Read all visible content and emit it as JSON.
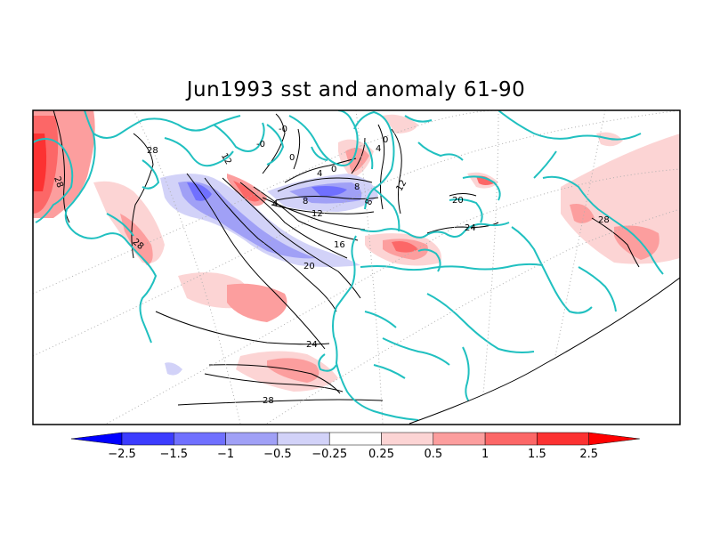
{
  "title": "Jun1993 sst and anomaly 61-90",
  "colorbar": {
    "labels": [
      "-2.5",
      "-1.5",
      "-1",
      "-0.5",
      "-0.25",
      "0.25",
      "0.5",
      "1",
      "1.5",
      "2.5"
    ],
    "colors": [
      "#0000ff",
      "#3c3cff",
      "#7070ff",
      "#a0a0f6",
      "#d2d2f8",
      "#ffffff",
      "#fcd4d4",
      "#fc9e9e",
      "#fc6767",
      "#fc3232",
      "#ff0000"
    ]
  },
  "contour_labels": [
    "28",
    "28",
    "28",
    "28",
    "28",
    "24",
    "24",
    "20",
    "20",
    "16",
    "12",
    "12",
    "12",
    "8",
    "8",
    "8",
    "4",
    "4",
    "4",
    "0",
    "0",
    "0",
    "-0",
    "-0"
  ],
  "colors": {
    "coastline": "#20c0c0",
    "frame": "#000000",
    "contour": "#000000",
    "grid": "#b0b0b0"
  }
}
